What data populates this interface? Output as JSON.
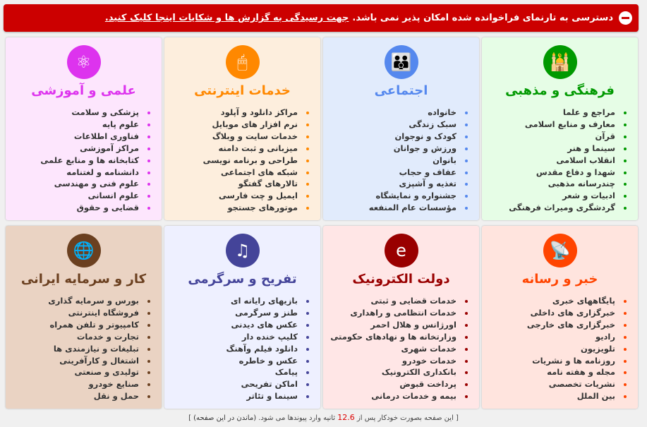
{
  "banner": {
    "text": "دسترسی به تارنمای فراخوانده شده امکان پذیر نمی باشد.",
    "link": "جهت رسیدگی به گزارش ها و شکایات اینجا کلیک کنید.",
    "icon": "no-entry-icon",
    "color": "#cc0000"
  },
  "categories": [
    {
      "title": "فرهنگی و مذهبی",
      "icon": "mosque-icon",
      "color": "#009900",
      "bg": "#e6fde6",
      "items": [
        "مراجع و علما",
        "معارف و منابع اسلامی",
        "قرآن",
        "سینما و هنر",
        "انقلاب اسلامی",
        "شهدا و دفاع مقدس",
        "چندرسانه مذهبی",
        "ادبیات و شعر",
        "گردشگری ومیراث فرهنگی"
      ]
    },
    {
      "title": "اجتماعی",
      "icon": "family-icon",
      "color": "#5588ee",
      "bg": "#e1ebfc",
      "items": [
        "خانواده",
        "سبک زندگی",
        "کودک و نوجوان",
        "ورزش و جوانان",
        "بانوان",
        "عفاف و حجاب",
        "تغذیه و آشپزی",
        "جشنواره و نمایشگاه",
        "مؤسسات عام المنفعه"
      ]
    },
    {
      "title": "خدمات اینترنتی",
      "icon": "mouse-icon",
      "color": "#ff8800",
      "bg": "#fdeedd",
      "items": [
        "مراکز دانلود و آپلود",
        "نرم افزار های موبایل",
        "خدمات سایت و وبلاگ",
        "میزبانی و ثبت دامنه",
        "طراحی و برنامه نویسی",
        "شبکه های اجتماعی",
        "تالارهای گفتگو",
        "ایمیل و چت فارسی",
        "موتورهای جستجو"
      ]
    },
    {
      "title": "علمی و آموزشی",
      "icon": "atom-icon",
      "color": "#dd33ee",
      "bg": "#fde6fd",
      "items": [
        "پزشکی و سلامت",
        "علوم پایه",
        "فناوری اطلاعات",
        "مراکز آموزشی",
        "کتابخانه ها و منابع علمی",
        "دانشنامه و لغتنامه",
        "علوم فنی و مهندسی",
        "علوم انسانی",
        "قضایی و حقوق"
      ]
    },
    {
      "title": "خبر و رسانه",
      "icon": "satellite-dish-icon",
      "color": "#ff4400",
      "bg": "#ffe4de",
      "items": [
        "پایگاههای خبری",
        "خبرگزاری های داخلی",
        "خبرگزاری های خارجی",
        "رادیو",
        "تلویزیون",
        "روزنامه ها و نشریات",
        "مجله و هفته نامه",
        "نشریات تخصصی",
        "بین الملل"
      ]
    },
    {
      "title": "دولت الکترونیک",
      "icon": "iran-map-e-icon",
      "color": "#990000",
      "bg": "#ffe6e6",
      "items": [
        "خدمات قضایی و ثبتی",
        "خدمات انتظامی و راهداری",
        "اورژانس و هلال احمر",
        "وزارتخانه ها و نهادهای حکومتی",
        "خدمات شهری",
        "خدمات خودرو",
        "بانکداری الکترونیک",
        "پرداخت قبوض",
        "بیمه و خدمات درمانی"
      ]
    },
    {
      "title": "تفریح و سرگرمی",
      "icon": "raised-hands-music-icon",
      "color": "#444499",
      "bg": "#eef0ff",
      "items": [
        "بازیهای رایانه ای",
        "طنز و سرگرمی",
        "عکس های دیدنی",
        "کلیپ خنده دار",
        "دانلود فیلم وآهنگ",
        "عکس و خاطره",
        "پیامک",
        "اماکن تفریحی",
        "سینما و تئاتر"
      ]
    },
    {
      "title": "کار و سرمایه ایرانی",
      "icon": "globe-handshake-icon",
      "color": "#6b4020",
      "bg": "#ead3c3",
      "items": [
        "بورس و سرمایه گذاری",
        "فروشگاه اینترنتی",
        "کامپیوتر و تلفن همراه",
        "تجارت و خدمات",
        "تبلیغات و نیازمندی ها",
        "اشتغال و کارآفرینی",
        "تولیدی و صنعتی",
        "صنایع خودرو",
        "حمل و نقل"
      ]
    }
  ],
  "footer": {
    "open": "[",
    "before": "این صفحه بصورت خودکار پس از",
    "seconds": "12.6",
    "after": "ثانیه وارد پیوندها می شود.",
    "stay_link": "(ماندن در این صفحه)",
    "close": "]"
  }
}
